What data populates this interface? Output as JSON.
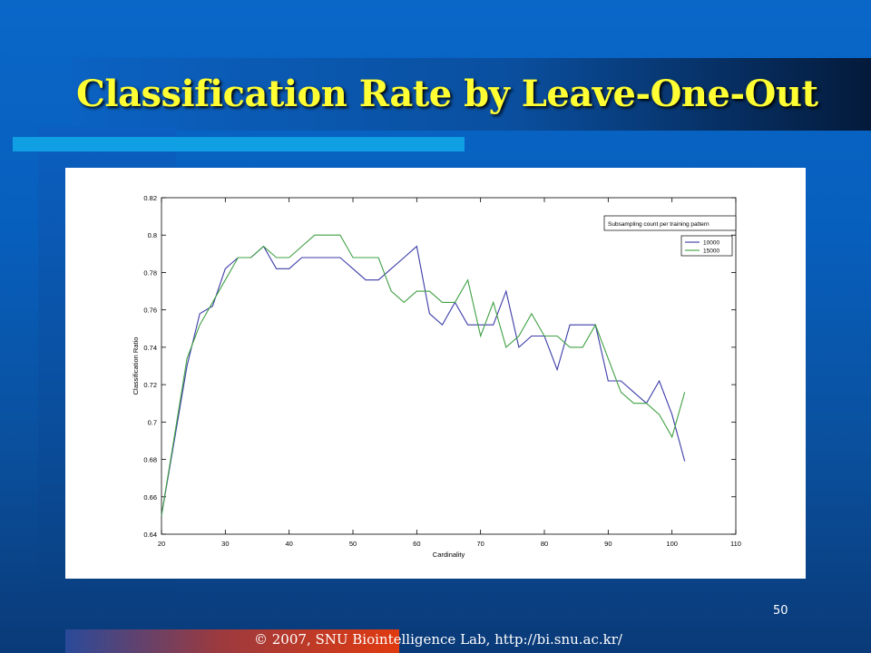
{
  "slide": {
    "title": "Classification Rate by Leave-One-Out",
    "page_number": "50",
    "footer": "© 2007, SNU Biointelligence Lab, http://bi.snu.ac.kr/"
  },
  "chart_data": {
    "type": "line",
    "xlabel": "Cardinality",
    "ylabel": "Classification Ratio",
    "xlim": [
      20,
      110
    ],
    "ylim": [
      0.64,
      0.82
    ],
    "xticks": [
      "20",
      "30",
      "40",
      "50",
      "60",
      "70",
      "80",
      "90",
      "100",
      "110"
    ],
    "yticks": [
      "0.64",
      "0.66",
      "0.68",
      "0.7",
      "0.72",
      "0.74",
      "0.76",
      "0.78",
      "0.8",
      "0.82"
    ],
    "grid": false,
    "legend_placement": "top-right",
    "legend_title": "Subsampling count per training pattern",
    "series": [
      {
        "name": "10000",
        "color": "#3b3ba8",
        "x": [
          20,
          22,
          24,
          26,
          28,
          30,
          32,
          34,
          36,
          38,
          40,
          42,
          44,
          46,
          48,
          50,
          52,
          54,
          56,
          58,
          60,
          62,
          64,
          66,
          68,
          70,
          72,
          74,
          76,
          78,
          80,
          82,
          84,
          86,
          88,
          90,
          92,
          94,
          96,
          98,
          100,
          102
        ],
        "values": [
          0.65,
          0.69,
          0.73,
          0.758,
          0.762,
          0.782,
          0.788,
          0.788,
          0.794,
          0.782,
          0.782,
          0.788,
          0.788,
          0.788,
          0.788,
          0.782,
          0.776,
          0.776,
          0.782,
          0.788,
          0.794,
          0.758,
          0.752,
          0.764,
          0.752,
          0.752,
          0.752,
          0.77,
          0.74,
          0.746,
          0.746,
          0.728,
          0.752,
          0.752,
          0.752,
          0.722,
          0.722,
          0.716,
          0.71,
          0.722,
          0.704,
          0.679
        ]
      },
      {
        "name": "15000",
        "color": "#3fa043",
        "x": [
          20,
          22,
          24,
          26,
          28,
          30,
          32,
          34,
          36,
          38,
          40,
          42,
          44,
          46,
          48,
          50,
          52,
          54,
          56,
          58,
          60,
          62,
          64,
          66,
          68,
          70,
          72,
          74,
          76,
          78,
          80,
          82,
          84,
          86,
          88,
          90,
          92,
          94,
          96,
          98,
          100,
          102
        ],
        "values": [
          0.65,
          0.692,
          0.734,
          0.752,
          0.764,
          0.776,
          0.788,
          0.788,
          0.794,
          0.788,
          0.788,
          0.794,
          0.8,
          0.8,
          0.8,
          0.788,
          0.788,
          0.788,
          0.77,
          0.764,
          0.77,
          0.77,
          0.764,
          0.764,
          0.776,
          0.746,
          0.764,
          0.74,
          0.746,
          0.758,
          0.746,
          0.746,
          0.74,
          0.74,
          0.752,
          0.734,
          0.716,
          0.71,
          0.71,
          0.704,
          0.692,
          0.716
        ]
      }
    ]
  }
}
